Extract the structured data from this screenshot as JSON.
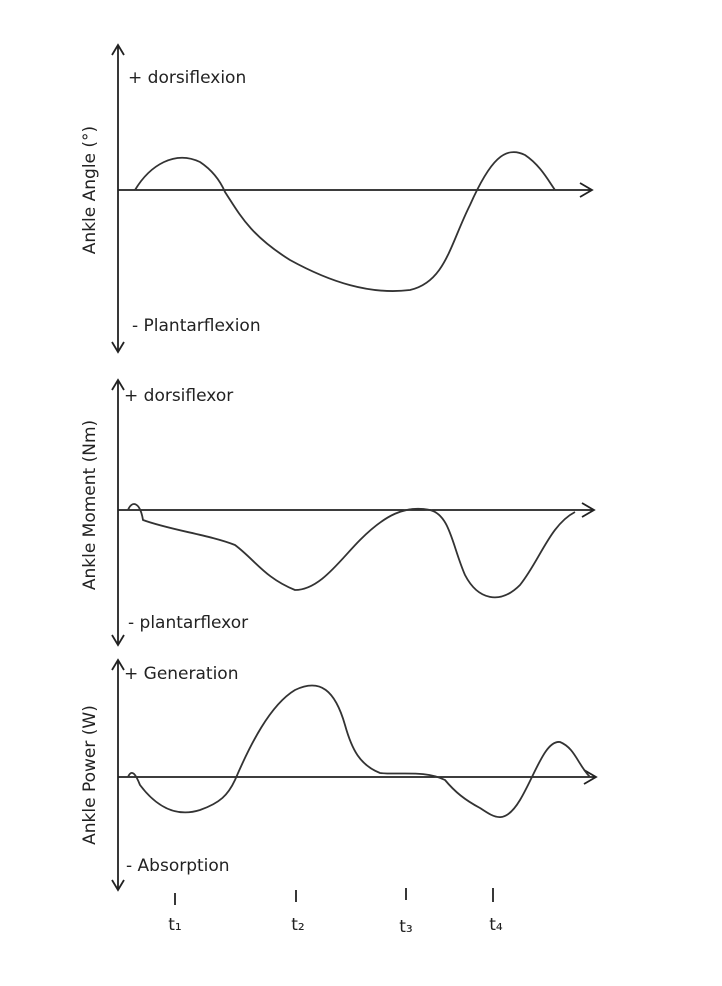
{
  "panels": [
    {
      "y_label": "Ankle Angle (°)",
      "top_label": "+ dorsiflexion",
      "bottom_label": "- Plantarflexion"
    },
    {
      "y_label": "Ankle Moment (Nm)",
      "top_label": "+ dorsiflexor",
      "bottom_label": "- plantarflexor"
    },
    {
      "y_label": "Ankle Power (W)",
      "top_label": "+ Generation",
      "bottom_label": "- Absorption"
    }
  ],
  "time_marks": [
    "t₁",
    "t₂",
    "t₃",
    "t₄"
  ]
}
